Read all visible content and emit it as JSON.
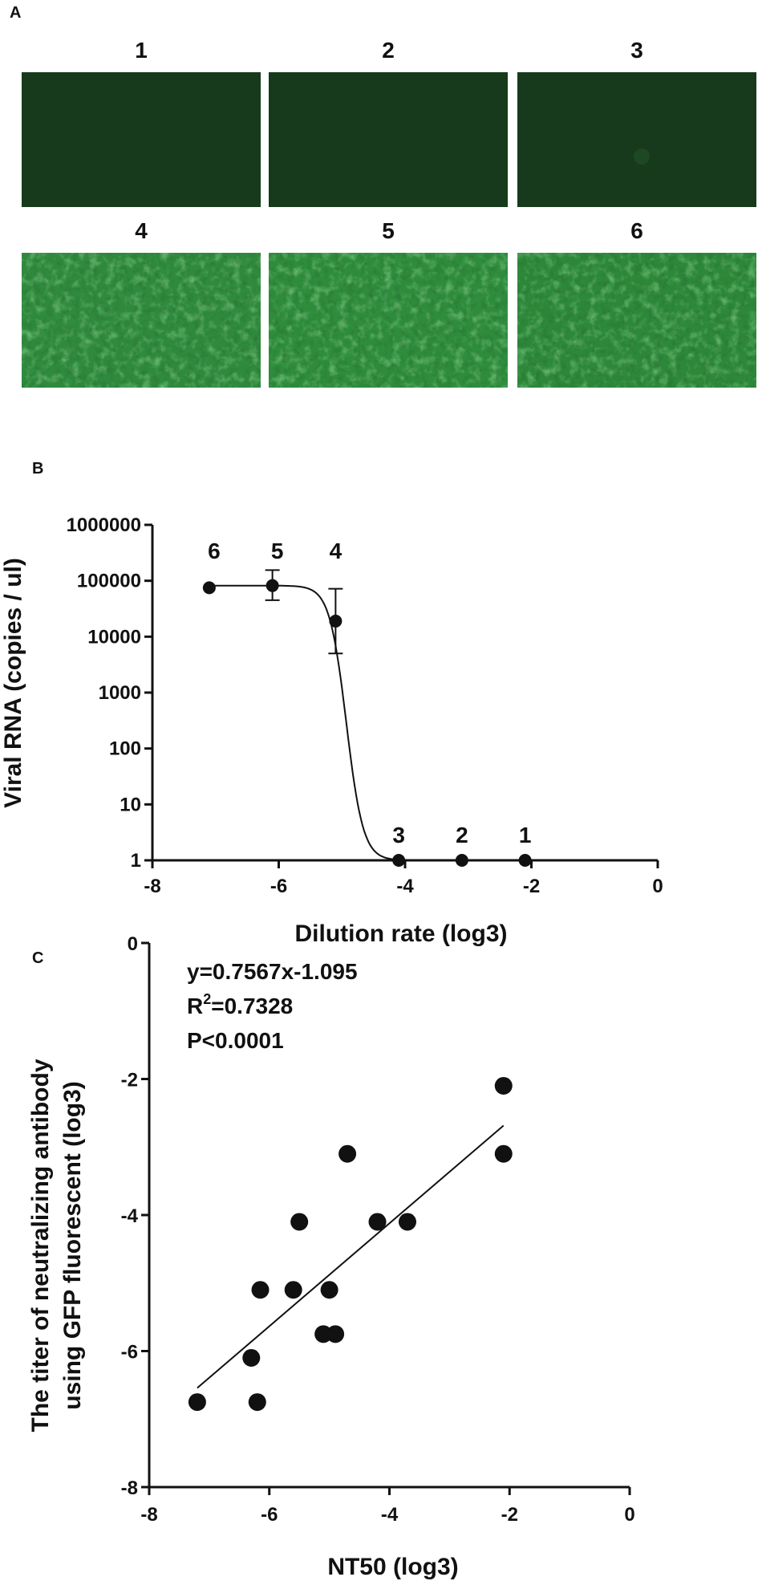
{
  "panel_labels": {
    "a": "A",
    "b": "B",
    "c": "C"
  },
  "panel_a": {
    "tiles": [
      {
        "label": "1",
        "kind": "dark",
        "base": "#173a1c"
      },
      {
        "label": "2",
        "kind": "dark",
        "base": "#163a1b"
      },
      {
        "label": "3",
        "kind": "dark",
        "base": "#17391c"
      },
      {
        "label": "4",
        "kind": "bright",
        "base": "#2f8a3d"
      },
      {
        "label": "5",
        "kind": "bright",
        "base": "#2e8c3c"
      },
      {
        "label": "6",
        "kind": "bright",
        "base": "#2d883a"
      }
    ]
  },
  "chart_data": [
    {
      "type": "scatter",
      "panel": "B",
      "xlabel": "Dilution rate (log3)",
      "ylabel": "Viral RNA (copies / ul)",
      "xlim": [
        -8,
        0
      ],
      "xticks": [
        "-8",
        "-6",
        "-4",
        "-2",
        "0"
      ],
      "ylim": [
        1,
        1000000
      ],
      "yscale": "log",
      "yticks": [
        "1",
        "10",
        "100",
        "1000",
        "10000",
        "100000",
        "1000000"
      ],
      "points": [
        {
          "x": -7.1,
          "y": 75000,
          "label": "6",
          "err": null
        },
        {
          "x": -6.1,
          "y": 82000,
          "label": "5",
          "err": [
            45000,
            155000
          ]
        },
        {
          "x": -5.1,
          "y": 19000,
          "label": "4",
          "err": [
            5000,
            72000
          ]
        },
        {
          "x": -4.1,
          "y": 1,
          "label": "3",
          "err": null
        },
        {
          "x": -3.1,
          "y": 1,
          "label": "2",
          "err": null
        },
        {
          "x": -2.1,
          "y": 1,
          "label": "1",
          "err": null
        }
      ],
      "fit": {
        "top": 82000,
        "bottom": 1,
        "x50": -4.93,
        "steepness": 7.5,
        "x_from": -7.1,
        "x_to": -2.1
      }
    },
    {
      "type": "scatter",
      "panel": "C",
      "xlabel": "NT50 (log3)",
      "ylabel_line1": "The titer of neutralizing antibody",
      "ylabel_line2": "using GFP fluorescent (log3)",
      "xlim": [
        -8,
        0
      ],
      "xticks": [
        "-8",
        "-6",
        "-4",
        "-2",
        "0"
      ],
      "ylim": [
        -8,
        0
      ],
      "yticks": [
        "-8",
        "-6",
        "-4",
        "-2",
        "0"
      ],
      "annotation": {
        "eq": "y=0.7567x-1.095",
        "r2_prefix": "R",
        "r2_sup": "2",
        "r2_rest": "=0.7328",
        "p": "P<0.0001"
      },
      "fit": {
        "slope": 0.7567,
        "intercept": -1.095,
        "x_from": -7.2,
        "x_to": -2.1
      },
      "points": [
        {
          "x": -7.2,
          "y": -6.75
        },
        {
          "x": -6.3,
          "y": -6.1
        },
        {
          "x": -6.2,
          "y": -6.75
        },
        {
          "x": -6.15,
          "y": -5.1
        },
        {
          "x": -5.6,
          "y": -5.1
        },
        {
          "x": -5.5,
          "y": -4.1
        },
        {
          "x": -5.1,
          "y": -5.75
        },
        {
          "x": -5.0,
          "y": -5.1
        },
        {
          "x": -4.9,
          "y": -5.75
        },
        {
          "x": -4.7,
          "y": -3.1
        },
        {
          "x": -4.2,
          "y": -4.1
        },
        {
          "x": -3.7,
          "y": -4.1
        },
        {
          "x": -2.1,
          "y": -2.1
        },
        {
          "x": -2.1,
          "y": -3.1
        }
      ]
    }
  ]
}
